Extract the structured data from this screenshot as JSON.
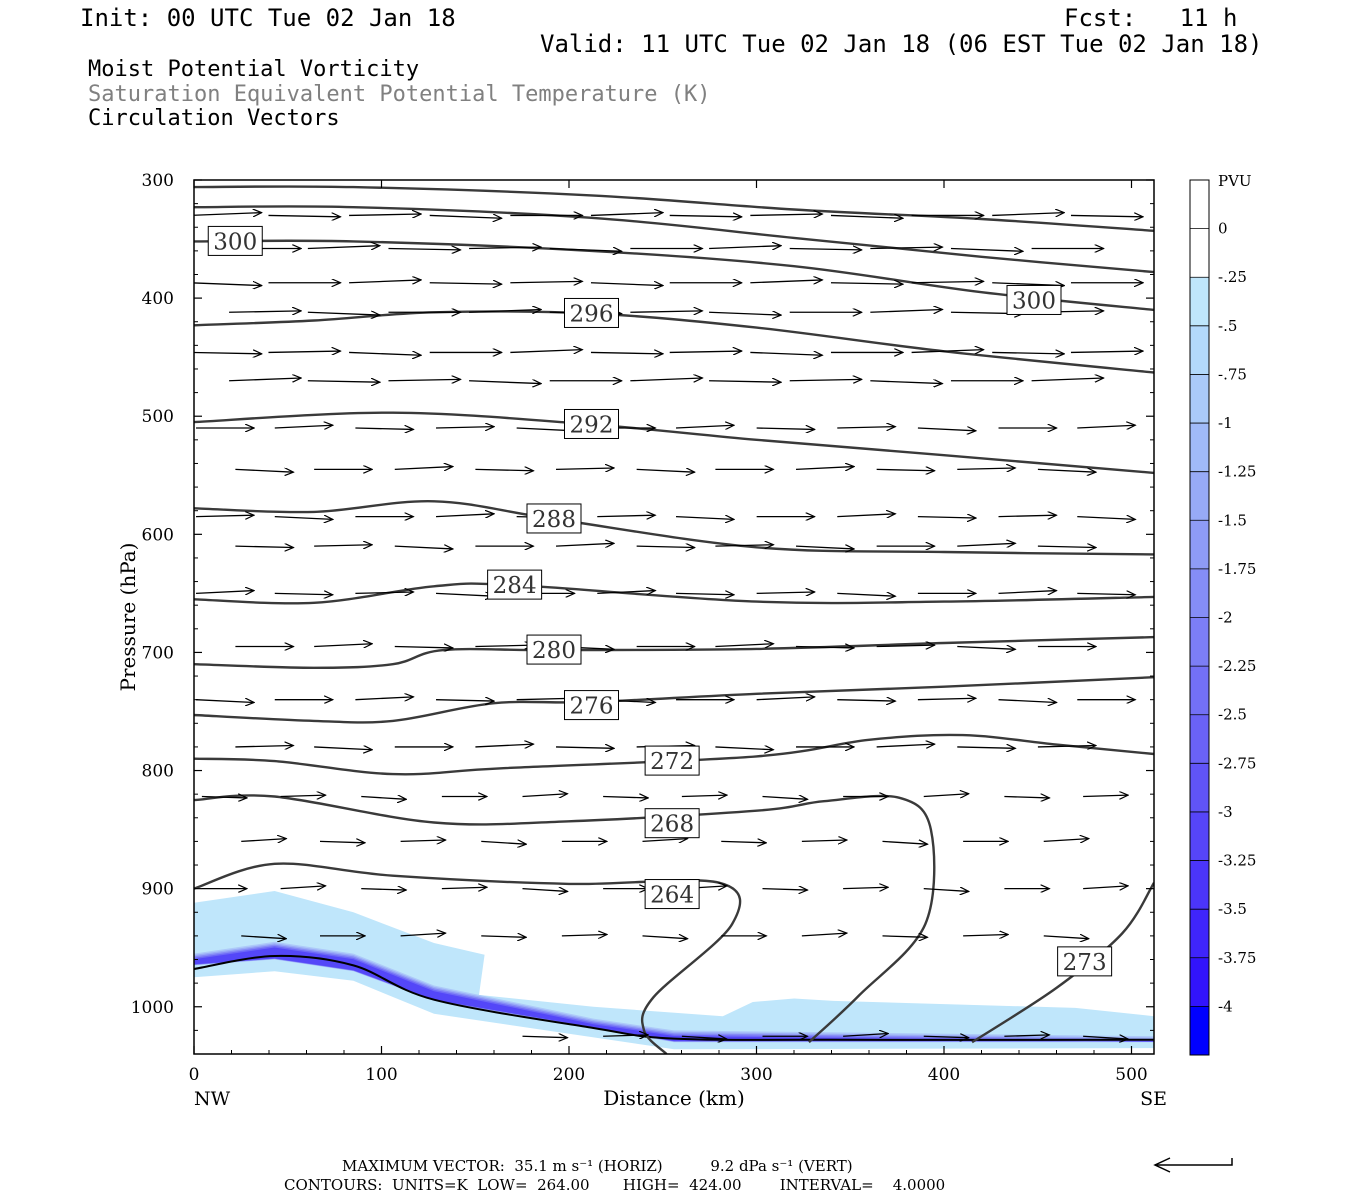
{
  "header": {
    "init": "Init: 00 UTC Tue 02 Jan 18",
    "fcst": "Fcst:   11 h",
    "valid": "Valid: 11 UTC Tue 02 Jan 18 (06 EST Tue 02 Jan 18)",
    "title_line1": "Moist Potential Vorticity",
    "title_line2": "Saturation Equivalent Potential Temperature (K)",
    "title_line3": "Circulation Vectors"
  },
  "footer": {
    "line1": "MAXIMUM VECTOR:  35.1 m s⁻¹ (HORIZ)          9.2 dPa s⁻¹ (VERT)",
    "line2": "CONTOURS:  UNITS=K  LOW=  264.00       HIGH=  424.00        INTERVAL=    4.0000"
  },
  "colors": {
    "contour": "#3a3a3a",
    "pv_light": "#bfe6fb",
    "pv_dark": "#0000ff"
  },
  "chart_data": {
    "type": "contour",
    "xlabel": "Distance (km)",
    "ylabel": "Pressure (hPa)",
    "xlim": [
      0,
      512
    ],
    "ylim": [
      300,
      1040
    ],
    "x_ticks": [
      0,
      100,
      200,
      300,
      400,
      500
    ],
    "y_ticks": [
      300,
      400,
      500,
      600,
      700,
      800,
      900,
      1000
    ],
    "x_end_labels": {
      "left": "NW",
      "right": "SE"
    },
    "colorbar": {
      "label": "PVU",
      "ticks": [
        "0",
        "-.25",
        "-.5",
        "-.75",
        "-1",
        "-1.25",
        "-1.5",
        "-1.75",
        "-2",
        "-2.25",
        "-2.5",
        "-2.75",
        "-3",
        "-3.25",
        "-3.5",
        "-3.75",
        "-4"
      ],
      "colors": [
        "#ffffff",
        "#ffffff",
        "#bfe6fb",
        "#b3d9fb",
        "#aacaf9",
        "#a0baf8",
        "#97aaf7",
        "#8e9bf6",
        "#858df6",
        "#7c7ef6",
        "#7370f6",
        "#6a62f6",
        "#6054f7",
        "#5645f8",
        "#4b35f9",
        "#3f25fb",
        "#3214fc",
        "#0000ff"
      ]
    },
    "theta_es_contours": [
      {
        "value": 264,
        "label": "264",
        "label_pos": [
          255,
          905
        ],
        "points": [
          [
            0,
            900
          ],
          [
            43,
            879
          ],
          [
            106,
            889
          ],
          [
            200,
            896
          ],
          [
            280,
            895
          ],
          [
            287,
            930
          ],
          [
            245,
            992
          ],
          [
            240,
            1020
          ],
          [
            252,
            1040
          ]
        ]
      },
      {
        "value": 268,
        "label": "268",
        "label_pos": [
          255,
          845
        ],
        "points": [
          [
            0,
            825
          ],
          [
            43,
            822
          ],
          [
            128,
            844
          ],
          [
            200,
            843
          ],
          [
            300,
            834
          ],
          [
            336,
            826
          ],
          [
            376,
            823
          ],
          [
            393,
            850
          ],
          [
            390,
            930
          ],
          [
            355,
            990
          ],
          [
            328,
            1030
          ]
        ]
      },
      {
        "value": 272,
        "label": "272",
        "label_pos": [
          255,
          792
        ],
        "points": [
          [
            0,
            790
          ],
          [
            43,
            792
          ],
          [
            106,
            803
          ],
          [
            165,
            798
          ],
          [
            300,
            788
          ],
          [
            360,
            774
          ],
          [
            410,
            770
          ],
          [
            460,
            778
          ],
          [
            512,
            786
          ]
        ]
      },
      {
        "value": 273,
        "label": "273",
        "label_pos": [
          475,
          962
        ],
        "points": [
          [
            415,
            1030
          ],
          [
            460,
            984
          ],
          [
            495,
            938
          ],
          [
            512,
            895
          ]
        ]
      },
      {
        "value": 276,
        "label": "276",
        "label_pos": [
          212,
          745
        ],
        "points": [
          [
            0,
            753
          ],
          [
            64,
            758
          ],
          [
            106,
            758
          ],
          [
            160,
            743
          ],
          [
            212,
            742
          ],
          [
            300,
            735
          ],
          [
            400,
            729
          ],
          [
            512,
            721
          ]
        ]
      },
      {
        "value": 280,
        "label": "280",
        "label_pos": [
          192,
          698
        ],
        "points": [
          [
            0,
            710
          ],
          [
            64,
            713
          ],
          [
            106,
            710
          ],
          [
            133,
            698
          ],
          [
            192,
            698
          ],
          [
            300,
            697
          ],
          [
            400,
            692
          ],
          [
            512,
            687
          ]
        ]
      },
      {
        "value": 284,
        "label": "284",
        "label_pos": [
          171,
          643
        ],
        "points": [
          [
            0,
            655
          ],
          [
            64,
            658
          ],
          [
            128,
            644
          ],
          [
            171,
            643
          ],
          [
            300,
            657
          ],
          [
            400,
            657
          ],
          [
            512,
            653
          ]
        ]
      },
      {
        "value": 288,
        "label": "288",
        "label_pos": [
          192,
          587
        ],
        "points": [
          [
            0,
            578
          ],
          [
            64,
            581
          ],
          [
            128,
            572
          ],
          [
            192,
            587
          ],
          [
            300,
            611
          ],
          [
            400,
            615
          ],
          [
            512,
            617
          ]
        ]
      },
      {
        "value": 292,
        "label": "292",
        "label_pos": [
          212,
          507
        ],
        "points": [
          [
            0,
            505
          ],
          [
            106,
            497
          ],
          [
            212,
            507
          ],
          [
            300,
            520
          ],
          [
            400,
            533
          ],
          [
            512,
            548
          ]
        ]
      },
      {
        "value": 296,
        "label": "296",
        "label_pos": [
          212,
          413
        ],
        "points": [
          [
            0,
            423
          ],
          [
            64,
            419
          ],
          [
            128,
            412
          ],
          [
            212,
            413
          ],
          [
            300,
            425
          ],
          [
            400,
            445
          ],
          [
            512,
            463
          ]
        ]
      },
      {
        "value": 300,
        "label": "300",
        "label_pos": [
          22,
          352
        ],
        "points": [
          [
            0,
            352
          ],
          [
            85,
            352
          ],
          [
            212,
            360
          ],
          [
            320,
            373
          ],
          [
            420,
            395
          ],
          [
            512,
            410
          ]
        ]
      },
      {
        "value": 300,
        "label": "300",
        "label_pos": [
          448,
          402
        ],
        "points": []
      },
      {
        "value": 304,
        "label": "",
        "points": [
          [
            0,
            323
          ],
          [
            85,
            323
          ],
          [
            212,
            332
          ],
          [
            320,
            349
          ],
          [
            420,
            365
          ],
          [
            512,
            378
          ]
        ]
      },
      {
        "value": 308,
        "label": "",
        "points": [
          [
            0,
            306
          ],
          [
            85,
            306
          ],
          [
            212,
            313
          ],
          [
            320,
            325
          ],
          [
            420,
            333
          ],
          [
            512,
            343
          ]
        ]
      }
    ],
    "terrain_pressure": [
      [
        0,
        968
      ],
      [
        43,
        957
      ],
      [
        85,
        965
      ],
      [
        128,
        994
      ],
      [
        213,
        1018
      ],
      [
        256,
        1027
      ],
      [
        340,
        1028
      ],
      [
        512,
        1028
      ]
    ],
    "pv_region_light": [
      [
        0,
        912
      ],
      [
        43,
        902
      ],
      [
        85,
        920
      ],
      [
        128,
        946
      ],
      [
        155,
        956
      ],
      [
        152,
        990
      ],
      [
        213,
        1000
      ],
      [
        282,
        1008
      ],
      [
        298,
        996
      ],
      [
        320,
        993
      ],
      [
        341,
        995
      ],
      [
        470,
        1001
      ],
      [
        512,
        1008
      ],
      [
        512,
        1035
      ],
      [
        256,
        1036
      ],
      [
        128,
        1006
      ],
      [
        85,
        978
      ],
      [
        43,
        970
      ],
      [
        0,
        975
      ]
    ],
    "pv_dark_band": [
      [
        0,
        955
      ],
      [
        43,
        945
      ],
      [
        85,
        955
      ],
      [
        128,
        982
      ],
      [
        213,
        1010
      ],
      [
        256,
        1020
      ],
      [
        512,
        1025
      ],
      [
        512,
        1030
      ],
      [
        256,
        1030
      ],
      [
        128,
        995
      ],
      [
        85,
        970
      ],
      [
        43,
        960
      ],
      [
        0,
        965
      ]
    ],
    "vectors": [
      {
        "rows_p": [
          330,
          358,
          387,
          412,
          446,
          470,
          510,
          545,
          585,
          610,
          650,
          695,
          740,
          780,
          822,
          860,
          900,
          940,
          1025
        ]
      }
    ]
  }
}
